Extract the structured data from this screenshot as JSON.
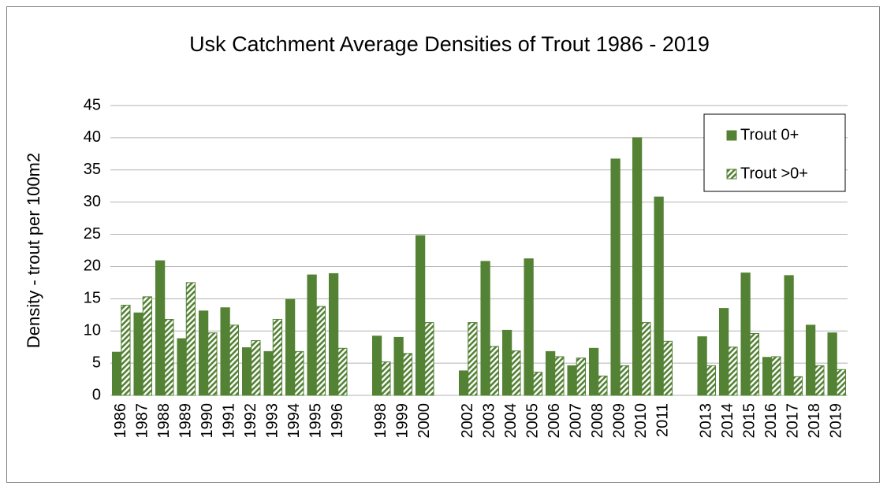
{
  "chart_data": {
    "type": "bar",
    "title": "Usk Catchment Average Densities of Trout 1986 - 2019",
    "y_label": "Density - trout per 100m2",
    "categories": [
      "1986",
      "1987",
      "1988",
      "1989",
      "1990",
      "1991",
      "1992",
      "1993",
      "1994",
      "1995",
      "1996",
      null,
      "1998",
      "1999",
      "2000",
      null,
      "2002",
      "2003",
      "2004",
      "2005",
      "2006",
      "2007",
      "2008",
      "2009",
      "2010",
      "2011",
      null,
      "2013",
      "2014",
      "2015",
      "2016",
      "2017",
      "2018",
      "2019"
    ],
    "series": [
      {
        "name": "Trout 0+",
        "color": "#548235",
        "hatch": false,
        "values": [
          6.7,
          12.8,
          20.9,
          8.8,
          13.1,
          13.6,
          7.4,
          6.8,
          14.9,
          18.7,
          18.9,
          null,
          9.2,
          9.0,
          24.8,
          null,
          3.8,
          20.8,
          10.1,
          21.2,
          6.8,
          4.6,
          7.3,
          36.7,
          40.0,
          30.8,
          null,
          9.1,
          13.5,
          19.0,
          5.9,
          18.6,
          10.9,
          9.7
        ]
      },
      {
        "name": "Trout >0+",
        "color": "#548235",
        "hatch": true,
        "values": [
          14.0,
          15.3,
          11.8,
          17.5,
          9.7,
          10.9,
          8.5,
          11.8,
          6.8,
          13.8,
          7.3,
          null,
          5.2,
          6.5,
          11.3,
          null,
          11.3,
          7.6,
          6.9,
          3.6,
          6.0,
          5.8,
          3.0,
          4.6,
          11.3,
          8.4,
          null,
          4.6,
          7.5,
          9.6,
          6.0,
          2.9,
          4.6,
          4.0
        ]
      }
    ],
    "ylim": [
      0,
      45
    ],
    "yticks": [
      0,
      5,
      10,
      15,
      20,
      25,
      30,
      35,
      40,
      45
    ],
    "grid": true,
    "legend": "top-right"
  }
}
